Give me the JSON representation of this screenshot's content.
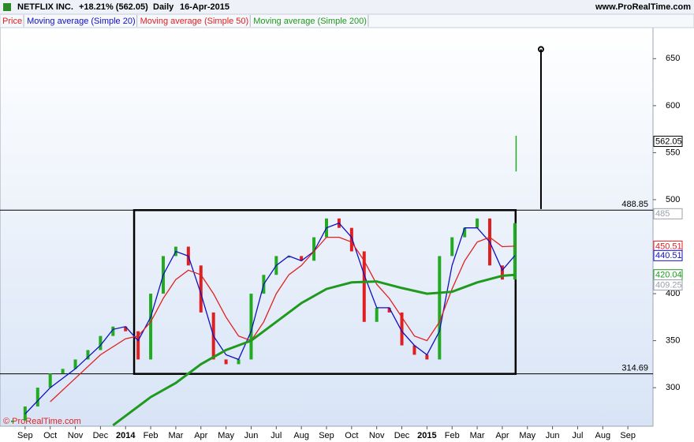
{
  "chart_data": {
    "type": "line",
    "header": {
      "title": "NETFLIX INC.",
      "change": "+18.21% (562.05)",
      "period": "Daily",
      "date": "16-Apr-2015",
      "site": "www.ProRealTime.com"
    },
    "copyright": "© ProRealTime.com",
    "xlim": [
      -1,
      25
    ],
    "xticks": [
      {
        "value": 0,
        "label": "Sep"
      },
      {
        "value": 1,
        "label": "Oct"
      },
      {
        "value": 2,
        "label": "Nov"
      },
      {
        "value": 3,
        "label": "Dec"
      },
      {
        "value": 4,
        "label": "2014"
      },
      {
        "value": 5,
        "label": "Feb"
      },
      {
        "value": 6,
        "label": "Mar"
      },
      {
        "value": 7,
        "label": "Apr"
      },
      {
        "value": 8,
        "label": "May"
      },
      {
        "value": 9,
        "label": "Jun"
      },
      {
        "value": 10,
        "label": "Jul"
      },
      {
        "value": 11,
        "label": "Aug"
      },
      {
        "value": 12,
        "label": "Sep"
      },
      {
        "value": 13,
        "label": "Oct"
      },
      {
        "value": 14,
        "label": "Nov"
      },
      {
        "value": 15,
        "label": "Dec"
      },
      {
        "value": 16,
        "label": "2015"
      },
      {
        "value": 17,
        "label": "Feb"
      },
      {
        "value": 18,
        "label": "Mar"
      },
      {
        "value": 19,
        "label": "Apr"
      },
      {
        "value": 20,
        "label": "May"
      },
      {
        "value": 21,
        "label": "Jun"
      },
      {
        "value": 22,
        "label": "Jul"
      },
      {
        "value": 23,
        "label": "Aug"
      },
      {
        "value": 24,
        "label": "Sep"
      }
    ],
    "ylim": [
      259,
      683
    ],
    "yticks": [
      300,
      350,
      400,
      500,
      550,
      600,
      650
    ],
    "series": [
      {
        "name": "Price",
        "color": "#e02020",
        "style": "candles",
        "x": [
          -0.5,
          0,
          0.5,
          1,
          1.5,
          2,
          2.5,
          3,
          3.5,
          4,
          4.5,
          5,
          5.5,
          6,
          6.5,
          7,
          7.5,
          8,
          8.5,
          9,
          9.5,
          10,
          10.5,
          11,
          11.5,
          12,
          12.5,
          13,
          13.5,
          14,
          14.5,
          15,
          15.5,
          16,
          16.5,
          17,
          17.5,
          18,
          18.5,
          19,
          19.5
        ],
        "values": [
          265,
          280,
          300,
          315,
          320,
          330,
          340,
          355,
          365,
          360,
          330,
          400,
          440,
          450,
          430,
          380,
          330,
          325,
          330,
          400,
          420,
          440,
          440,
          435,
          460,
          480,
          470,
          445,
          370,
          385,
          380,
          345,
          335,
          330,
          440,
          460,
          470,
          480,
          430,
          415,
          475
        ]
      },
      {
        "name": "Moving average (Simple 20)",
        "color": "#1010c0",
        "x": [
          0,
          1,
          2,
          3,
          3.5,
          4,
          4.5,
          5,
          5.5,
          6,
          6.5,
          7,
          7.5,
          8,
          8.5,
          9,
          9.5,
          10,
          10.5,
          11,
          11.5,
          12,
          12.5,
          13,
          13.5,
          14,
          14.5,
          15,
          15.5,
          16,
          16.5,
          17,
          17.5,
          18,
          18.5,
          19,
          19.5
        ],
        "values": [
          272,
          300,
          320,
          345,
          362,
          365,
          350,
          375,
          420,
          445,
          440,
          400,
          355,
          335,
          330,
          360,
          410,
          430,
          440,
          435,
          445,
          470,
          475,
          460,
          420,
          385,
          385,
          360,
          345,
          335,
          360,
          430,
          470,
          470,
          455,
          425,
          440.51
        ]
      },
      {
        "name": "Moving average (Simple 50)",
        "color": "#e02020",
        "x": [
          1,
          2,
          3,
          4,
          4.5,
          5,
          5.5,
          6,
          6.5,
          7,
          7.5,
          8,
          8.5,
          9,
          9.5,
          10,
          10.5,
          11,
          11.5,
          12,
          12.5,
          13,
          13.5,
          14,
          14.5,
          15,
          15.5,
          16,
          16.5,
          17,
          17.5,
          18,
          18.5,
          19,
          19.5
        ],
        "values": [
          285,
          310,
          335,
          352,
          355,
          370,
          395,
          415,
          425,
          420,
          400,
          375,
          355,
          350,
          370,
          400,
          420,
          430,
          445,
          460,
          460,
          455,
          435,
          410,
          395,
          375,
          355,
          350,
          370,
          405,
          435,
          455,
          460,
          450,
          450.51
        ]
      },
      {
        "name": "Moving average (Simple 200)",
        "color": "#1f9a1f",
        "x": [
          3.5,
          4,
          5,
          6,
          7,
          8,
          9,
          10,
          11,
          12,
          13,
          14,
          15,
          16,
          17,
          18,
          19,
          19.5
        ],
        "values": [
          260,
          270,
          290,
          305,
          325,
          340,
          350,
          370,
          390,
          405,
          412,
          413,
          406,
          400,
          402,
          412,
          419,
          420.04
        ]
      }
    ],
    "last_bar": {
      "x": 19.55,
      "low": 530,
      "high": 568,
      "color": "#22aa22"
    },
    "levels": [
      {
        "value": 488.85,
        "label": "488.85"
      },
      {
        "value": 314.69,
        "label": "314.69"
      }
    ],
    "box": {
      "x": [
        4.34,
        19.53
      ],
      "y": [
        314.69,
        488.85
      ]
    },
    "marker_line": {
      "x": 20.54,
      "y": [
        490,
        660
      ]
    },
    "tags": [
      {
        "value": 562.05,
        "label": "562.05",
        "color": "#000000",
        "bg": "#ffffff"
      },
      {
        "value": 485,
        "label": "485",
        "color": "#9aa0aa",
        "bg": "#ffffff"
      },
      {
        "value": 450.51,
        "label": "450.51",
        "color": "#e02020",
        "bg": "#ffffff"
      },
      {
        "value": 440.51,
        "label": "440.51",
        "color": "#1010c0",
        "bg": "#ffffff"
      },
      {
        "value": 420.04,
        "label": "420.04",
        "color": "#1f9a1f",
        "bg": "#ffffff"
      },
      {
        "value": 409.25,
        "label": "409.25",
        "color": "#9aa0aa",
        "bg": "#ffffff"
      }
    ]
  }
}
